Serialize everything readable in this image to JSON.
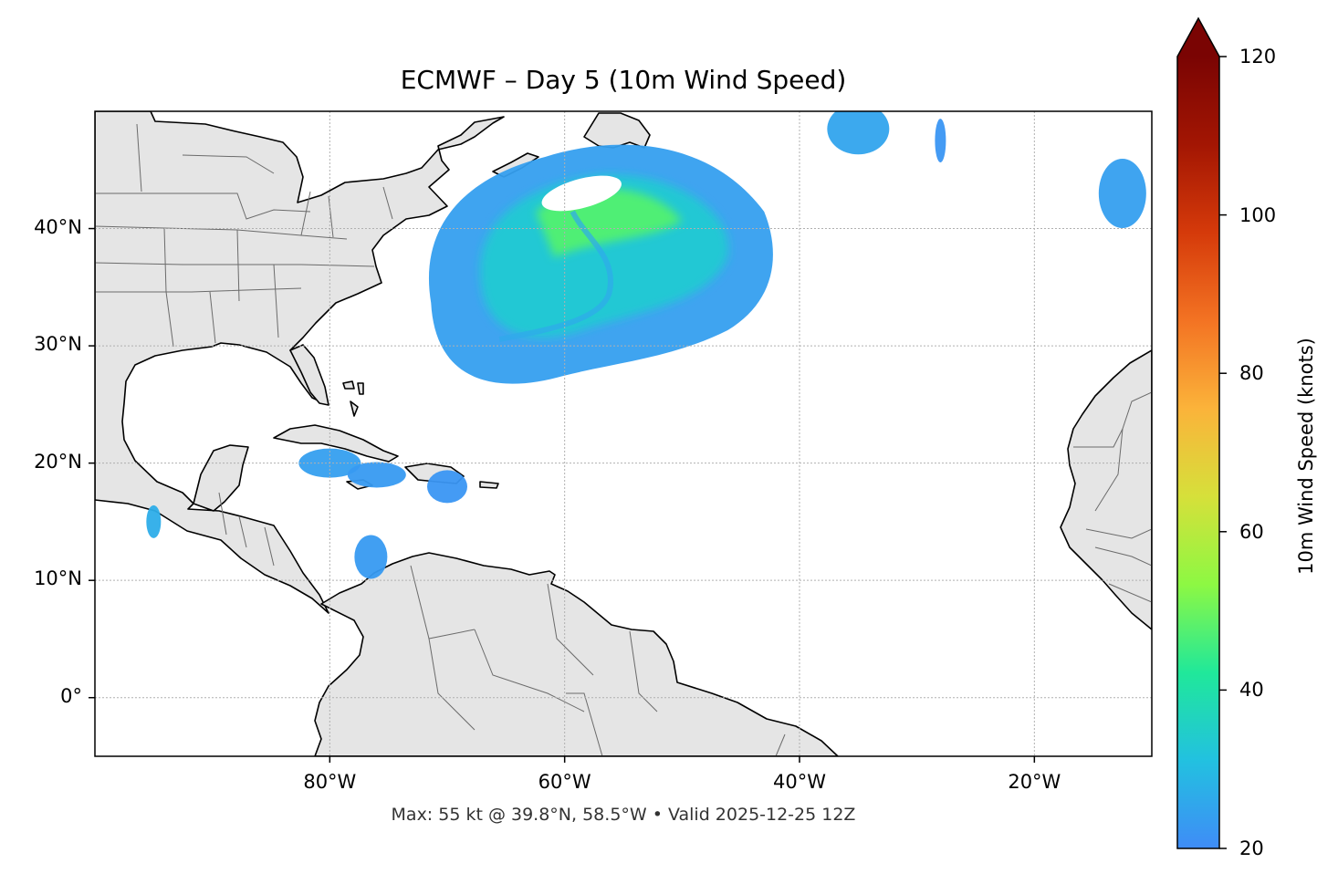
{
  "title": "ECMWF – Day 5 (10m Wind Speed)",
  "footer": "Max: 55 kt @ 39.8°N, 58.5°W • Valid 2025-12-25 12Z",
  "map": {
    "extent": {
      "lon": [
        -100,
        -10
      ],
      "lat": [
        -5,
        50
      ]
    },
    "lat_ticks": [
      {
        "value": 40,
        "label": "40°N"
      },
      {
        "value": 30,
        "label": "30°N"
      },
      {
        "value": 20,
        "label": "20°N"
      },
      {
        "value": 10,
        "label": "10°N"
      },
      {
        "value": 0,
        "label": "0°"
      }
    ],
    "lon_ticks": [
      {
        "value": -80,
        "label": "80°W"
      },
      {
        "value": -60,
        "label": "60°W"
      },
      {
        "value": -40,
        "label": "40°W"
      },
      {
        "value": -20,
        "label": "20°W"
      }
    ],
    "gridlines": true,
    "land_color": "#e5e5e5",
    "coast_color": "#000000",
    "border_color": "#6b6b6b"
  },
  "colorbar": {
    "label": "10m Wind Speed (knots)",
    "min": 20,
    "max": 120,
    "ticks": [
      {
        "value": 120,
        "label": "120"
      },
      {
        "value": 100,
        "label": "100"
      },
      {
        "value": 80,
        "label": "80"
      },
      {
        "value": 60,
        "label": "60"
      },
      {
        "value": 40,
        "label": "40"
      },
      {
        "value": 20,
        "label": "20"
      }
    ],
    "extend": "max",
    "colormap": [
      "#3f8cf7",
      "#22c1e0",
      "#20e89a",
      "#8df843",
      "#d6e03a",
      "#fbb33a",
      "#f37323",
      "#d53a0a",
      "#a31603",
      "#7a0403"
    ]
  },
  "chart_data": {
    "type": "heatmap",
    "title": "ECMWF – Day 5 (10m Wind Speed)",
    "variable": "10m Wind Speed",
    "units": "knots",
    "max": {
      "value": 55,
      "lat": 39.8,
      "lon": -58.5
    },
    "valid": "2025-12-25 12Z",
    "regions": [
      {
        "lat": 36,
        "lon": -57,
        "peak": 55
      },
      {
        "lat": 20,
        "lon": -80,
        "peak": 24
      },
      {
        "lat": 19,
        "lon": -76,
        "peak": 23
      },
      {
        "lat": 18,
        "lon": -70,
        "peak": 22
      },
      {
        "lat": 12,
        "lon": -76.5,
        "peak": 23
      },
      {
        "lat": 15,
        "lon": -95,
        "peak": 27
      },
      {
        "lat": 48.5,
        "lon": -35,
        "peak": 25
      },
      {
        "lat": 47.5,
        "lon": -28,
        "peak": 22
      },
      {
        "lat": 43,
        "lon": -12.5,
        "peak": 24
      }
    ]
  }
}
